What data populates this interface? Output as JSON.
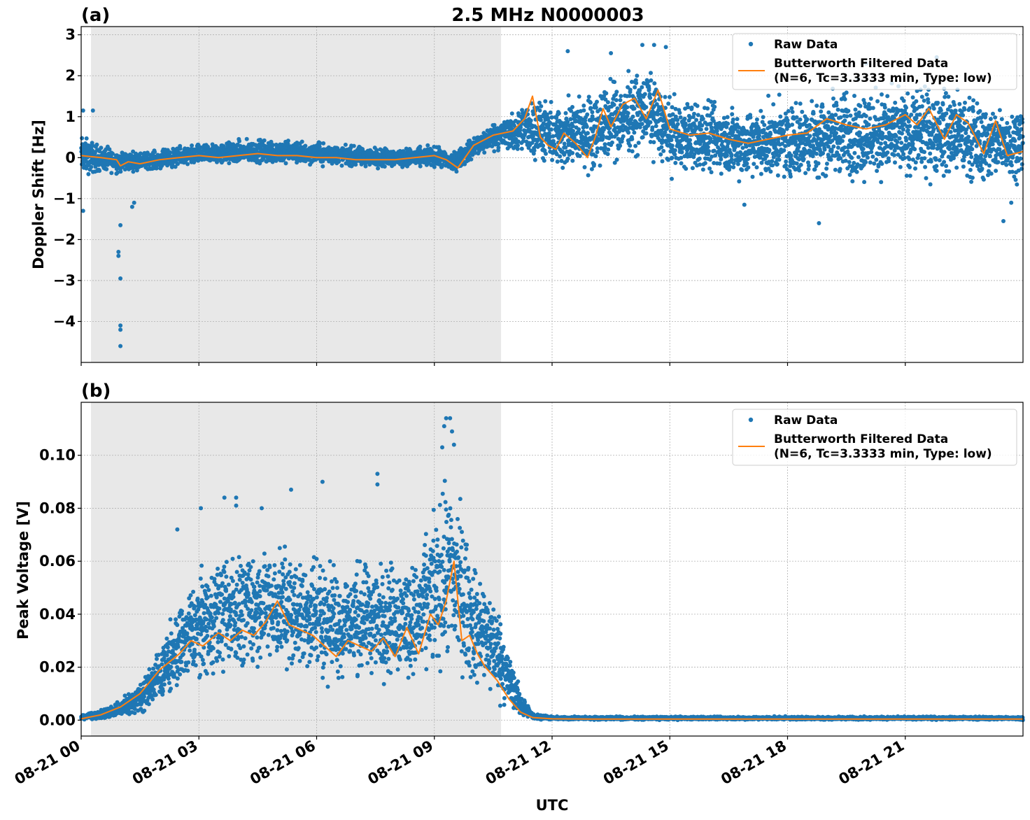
{
  "figure": {
    "title": "2.5 MHz N0000003",
    "xlabel": "UTC",
    "x_tick_labels": [
      "08-21 00",
      "08-21 03",
      "08-21 06",
      "08-21 09",
      "08-21 12",
      "08-21 15",
      "08-21 18",
      "08-21 21"
    ],
    "colors": {
      "raw": "#1f77b4",
      "filtered": "#ff7f0e",
      "shade": "#e8e8e8",
      "grid": "#b0b0b0"
    }
  },
  "chart_data": [
    {
      "type": "scatter",
      "panel_label": "(a)",
      "ylabel": "Doppler Shift [Hz]",
      "x_unit": "UTC hours, 2017-08-21 (x tick labels: 08-21 00 ... 08-21 21)",
      "xlim": [
        0,
        24
      ],
      "ylim": [
        -5,
        3.2
      ],
      "yticks": [
        3,
        2,
        1,
        0,
        -1,
        -2,
        -3,
        -4
      ],
      "ytick_labels": [
        "3",
        "2",
        "1",
        "0",
        "−1",
        "−2",
        "−3",
        "−4"
      ],
      "grid": true,
      "shaded_interval": [
        0.25,
        10.7
      ],
      "legend": {
        "placement": "upper-right",
        "entries": [
          "Raw Data",
          "Butterworth Filtered Data",
          "(N=6, Tc=3.3333 min, Type: low)"
        ]
      },
      "envelope": {
        "x": [
          0,
          0.5,
          1,
          1.5,
          2,
          3,
          4,
          5,
          6,
          7,
          8,
          9,
          9.5,
          10,
          10.5,
          11,
          11.5,
          12,
          12.5,
          13,
          13.5,
          14,
          14.5,
          15,
          16,
          17,
          18,
          19,
          20,
          21,
          22,
          23,
          24
        ],
        "upper": [
          0.7,
          0.4,
          0.25,
          0.2,
          0.25,
          0.4,
          0.5,
          0.55,
          0.45,
          0.35,
          0.3,
          0.35,
          0.2,
          0.6,
          0.95,
          1.2,
          1.7,
          1.5,
          1.7,
          1.9,
          2.1,
          2.3,
          2.4,
          1.7,
          1.6,
          1.5,
          1.6,
          1.9,
          2.1,
          1.9,
          2.1,
          1.6,
          1.5
        ],
        "lower": [
          -0.6,
          -0.45,
          -0.45,
          -0.35,
          -0.35,
          -0.25,
          -0.25,
          -0.25,
          -0.25,
          -0.3,
          -0.3,
          -0.3,
          -0.45,
          -0.1,
          0.1,
          0.0,
          -0.2,
          -0.5,
          -0.6,
          -0.6,
          -0.4,
          -0.2,
          -0.1,
          -0.6,
          -0.7,
          -0.8,
          -0.8,
          -0.8,
          -0.9,
          -0.8,
          -0.8,
          -0.9,
          -0.7
        ]
      },
      "outliers": [
        {
          "x": 0.05,
          "y": 1.15
        },
        {
          "x": 0.3,
          "y": 1.15
        },
        {
          "x": 0.05,
          "y": -1.3
        },
        {
          "x": 0.95,
          "y": -2.3
        },
        {
          "x": 0.95,
          "y": -2.4
        },
        {
          "x": 1.0,
          "y": -1.65
        },
        {
          "x": 1.0,
          "y": -2.95
        },
        {
          "x": 1.0,
          "y": -4.1
        },
        {
          "x": 1.0,
          "y": -4.2
        },
        {
          "x": 1.0,
          "y": -4.6
        },
        {
          "x": 1.3,
          "y": -1.2
        },
        {
          "x": 1.35,
          "y": -1.1
        },
        {
          "x": 12.4,
          "y": 2.6
        },
        {
          "x": 13.5,
          "y": 2.55
        },
        {
          "x": 14.3,
          "y": 2.75
        },
        {
          "x": 14.6,
          "y": 2.75
        },
        {
          "x": 14.9,
          "y": 2.7
        },
        {
          "x": 18.8,
          "y": -1.6
        },
        {
          "x": 20.0,
          "y": 2.3
        },
        {
          "x": 21.8,
          "y": 2.45
        },
        {
          "x": 23.5,
          "y": -1.55
        },
        {
          "x": 23.7,
          "y": -1.1
        },
        {
          "x": 16.9,
          "y": -1.15
        }
      ],
      "filtered": {
        "x": [
          0,
          0.5,
          0.9,
          1.0,
          1.2,
          1.5,
          2,
          2.5,
          3,
          3.5,
          4,
          4.5,
          5,
          5.5,
          6,
          6.5,
          7,
          7.5,
          8,
          8.5,
          9,
          9.3,
          9.6,
          10,
          10.5,
          11,
          11.3,
          11.5,
          11.7,
          11.9,
          12.1,
          12.3,
          12.6,
          12.9,
          13.1,
          13.3,
          13.5,
          13.8,
          14.1,
          14.4,
          14.7,
          15,
          15.5,
          16,
          16.5,
          17,
          17.5,
          18,
          18.5,
          19,
          19.5,
          20,
          20.5,
          21,
          21.3,
          21.6,
          22,
          22.3,
          22.6,
          23,
          23.3,
          23.6,
          24
        ],
        "y": [
          0.05,
          0.0,
          -0.05,
          -0.2,
          -0.1,
          -0.15,
          -0.05,
          0.0,
          0.05,
          0.0,
          0.05,
          0.1,
          0.05,
          0.05,
          0.0,
          0.0,
          -0.05,
          -0.05,
          -0.05,
          0.0,
          0.05,
          -0.05,
          -0.25,
          0.3,
          0.55,
          0.65,
          0.95,
          1.5,
          0.5,
          0.3,
          0.2,
          0.6,
          0.35,
          0.0,
          0.5,
          1.2,
          0.75,
          1.3,
          1.45,
          0.95,
          1.65,
          0.7,
          0.55,
          0.6,
          0.45,
          0.35,
          0.45,
          0.55,
          0.6,
          0.95,
          0.8,
          0.7,
          0.8,
          1.05,
          0.8,
          1.2,
          0.45,
          1.05,
          0.85,
          0.1,
          0.9,
          0.05,
          0.15
        ]
      }
    },
    {
      "type": "scatter",
      "panel_label": "(b)",
      "ylabel": "Peak Voltage [V]",
      "x_unit": "UTC hours, 2017-08-21",
      "xlim": [
        0,
        24
      ],
      "ylim": [
        -0.006,
        0.12
      ],
      "yticks": [
        0.0,
        0.02,
        0.04,
        0.06,
        0.08,
        0.1
      ],
      "ytick_labels": [
        "0.00",
        "0.02",
        "0.04",
        "0.06",
        "0.08",
        "0.10"
      ],
      "grid": true,
      "shaded_interval": [
        0.25,
        10.7
      ],
      "legend": {
        "placement": "upper-right",
        "entries": [
          "Raw Data",
          "Butterworth Filtered Data",
          "(N=6, Tc=3.3333 min, Type: low)"
        ]
      },
      "envelope": {
        "x": [
          0,
          0.5,
          1,
          1.5,
          2,
          2.5,
          3,
          3.5,
          4,
          4.5,
          5,
          5.5,
          6,
          6.5,
          7,
          7.5,
          8,
          8.5,
          9,
          9.3,
          9.6,
          9.8,
          10,
          10.3,
          10.6,
          10.9,
          11.2,
          11.5,
          12,
          13,
          14,
          15,
          16,
          17,
          18,
          19,
          20,
          21,
          22,
          23,
          24
        ],
        "upper": [
          0.002,
          0.004,
          0.009,
          0.016,
          0.03,
          0.048,
          0.062,
          0.068,
          0.07,
          0.07,
          0.072,
          0.068,
          0.07,
          0.064,
          0.066,
          0.066,
          0.068,
          0.066,
          0.085,
          0.1,
          0.098,
          0.08,
          0.065,
          0.06,
          0.05,
          0.03,
          0.012,
          0.003,
          0.0015,
          0.0015,
          0.0015,
          0.0015,
          0.0015,
          0.0015,
          0.0015,
          0.0015,
          0.0015,
          0.0015,
          0.0015,
          0.0015,
          0.0015
        ],
        "lower": [
          0.0,
          0.0,
          0.0,
          0.001,
          0.004,
          0.007,
          0.01,
          0.012,
          0.013,
          0.015,
          0.014,
          0.012,
          0.01,
          0.009,
          0.009,
          0.01,
          0.01,
          0.009,
          0.01,
          0.009,
          0.008,
          0.008,
          0.006,
          0.005,
          0.003,
          0.001,
          0.0,
          0.0,
          0.0,
          0.0,
          0.0,
          0.0,
          0.0,
          0.0,
          0.0,
          0.0,
          0.0,
          0.0,
          0.0,
          0.0,
          0.0
        ]
      },
      "outliers": [
        {
          "x": 2.45,
          "y": 0.072
        },
        {
          "x": 3.05,
          "y": 0.08
        },
        {
          "x": 3.65,
          "y": 0.084
        },
        {
          "x": 3.95,
          "y": 0.084
        },
        {
          "x": 3.95,
          "y": 0.081
        },
        {
          "x": 4.6,
          "y": 0.08
        },
        {
          "x": 5.35,
          "y": 0.087
        },
        {
          "x": 6.15,
          "y": 0.09
        },
        {
          "x": 7.55,
          "y": 0.093
        },
        {
          "x": 7.55,
          "y": 0.089
        },
        {
          "x": 9.3,
          "y": 0.114
        },
        {
          "x": 9.4,
          "y": 0.114
        },
        {
          "x": 9.25,
          "y": 0.111
        },
        {
          "x": 9.45,
          "y": 0.109
        },
        {
          "x": 9.5,
          "y": 0.104
        },
        {
          "x": 9.2,
          "y": 0.103
        }
      ],
      "filtered": {
        "x": [
          0,
          0.5,
          1,
          1.5,
          2,
          2.5,
          2.8,
          3.1,
          3.5,
          3.8,
          4.1,
          4.4,
          4.7,
          5.0,
          5.3,
          5.6,
          5.9,
          6.2,
          6.5,
          6.8,
          7.1,
          7.4,
          7.7,
          8.0,
          8.3,
          8.6,
          8.9,
          9.1,
          9.3,
          9.5,
          9.7,
          9.9,
          10.1,
          10.3,
          10.6,
          10.9,
          11.2,
          11.5,
          12,
          13,
          14,
          15,
          16,
          17,
          18,
          19,
          20,
          21,
          22,
          23,
          24
        ],
        "y": [
          0.0005,
          0.002,
          0.005,
          0.01,
          0.019,
          0.025,
          0.03,
          0.028,
          0.033,
          0.03,
          0.034,
          0.032,
          0.037,
          0.045,
          0.036,
          0.034,
          0.032,
          0.028,
          0.024,
          0.03,
          0.028,
          0.026,
          0.031,
          0.024,
          0.035,
          0.025,
          0.04,
          0.036,
          0.045,
          0.06,
          0.03,
          0.032,
          0.025,
          0.02,
          0.015,
          0.008,
          0.003,
          0.001,
          0.0005,
          0.0004,
          0.0004,
          0.0004,
          0.0004,
          0.0004,
          0.0004,
          0.0004,
          0.0004,
          0.0004,
          0.0004,
          0.0004,
          0.0004
        ]
      }
    }
  ]
}
